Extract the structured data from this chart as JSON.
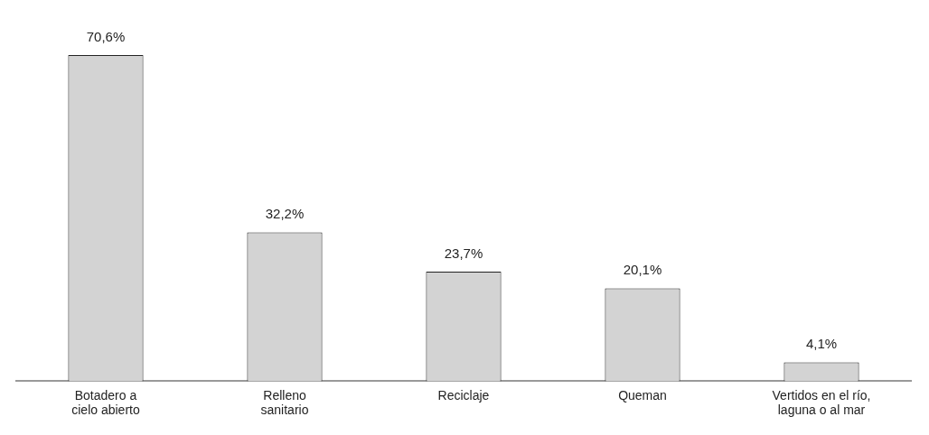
{
  "chart_data": {
    "type": "bar",
    "categories": [
      "Botadero a\ncielo abierto",
      "Relleno\nsanitario",
      "Reciclaje",
      "Queman",
      "Vertidos en el río,\nlaguna o al mar"
    ],
    "values": [
      70.6,
      32.2,
      23.7,
      20.1,
      4.1
    ],
    "value_labels": [
      "70,6%",
      "32,2%",
      "23,7%",
      "20,1%",
      "4,1%"
    ],
    "color": "#d3d3d3",
    "grid": false,
    "legend": false
  }
}
